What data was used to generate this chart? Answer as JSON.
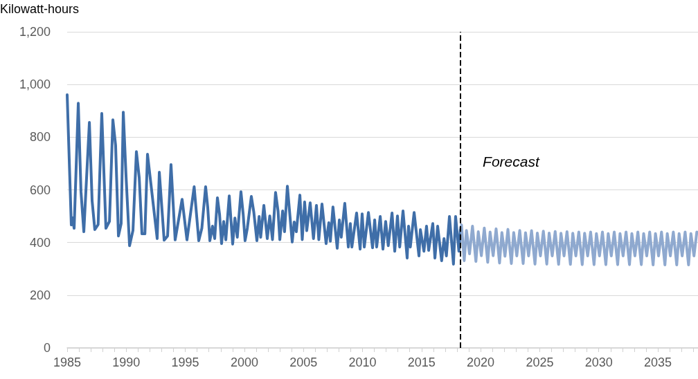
{
  "chart_data": {
    "type": "line",
    "ylabel": "Kilowatt-hours",
    "marker": "none",
    "line_style": "solid",
    "grid": "y",
    "xlim": [
      1985,
      2038.4
    ],
    "xticks": [
      {
        "value": 1985,
        "label": "1985"
      },
      {
        "value": 1986,
        "label": null
      },
      {
        "value": 1987,
        "label": null
      },
      {
        "value": 1988,
        "label": null
      },
      {
        "value": 1989,
        "label": null
      },
      {
        "value": 1990,
        "label": "1990"
      },
      {
        "value": 1991,
        "label": null
      },
      {
        "value": 1992,
        "label": null
      },
      {
        "value": 1993,
        "label": null
      },
      {
        "value": 1994,
        "label": null
      },
      {
        "value": 1995,
        "label": "1995"
      },
      {
        "value": 1996,
        "label": null
      },
      {
        "value": 1997,
        "label": null
      },
      {
        "value": 1998,
        "label": null
      },
      {
        "value": 1999,
        "label": null
      },
      {
        "value": 2000,
        "label": "2000"
      },
      {
        "value": 2001,
        "label": null
      },
      {
        "value": 2002,
        "label": null
      },
      {
        "value": 2003,
        "label": null
      },
      {
        "value": 2004,
        "label": null
      },
      {
        "value": 2005,
        "label": "2005"
      },
      {
        "value": 2006,
        "label": null
      },
      {
        "value": 2007,
        "label": null
      },
      {
        "value": 2008,
        "label": null
      },
      {
        "value": 2009,
        "label": null
      },
      {
        "value": 2010,
        "label": "2010"
      },
      {
        "value": 2011,
        "label": null
      },
      {
        "value": 2012,
        "label": null
      },
      {
        "value": 2013,
        "label": null
      },
      {
        "value": 2014,
        "label": null
      },
      {
        "value": 2015,
        "label": "2015"
      },
      {
        "value": 2016,
        "label": null
      },
      {
        "value": 2017,
        "label": null
      },
      {
        "value": 2018,
        "label": null
      },
      {
        "value": 2019,
        "label": null
      },
      {
        "value": 2020,
        "label": "2020"
      },
      {
        "value": 2021,
        "label": null
      },
      {
        "value": 2022,
        "label": null
      },
      {
        "value": 2023,
        "label": null
      },
      {
        "value": 2024,
        "label": null
      },
      {
        "value": 2025,
        "label": "2025"
      },
      {
        "value": 2026,
        "label": null
      },
      {
        "value": 2027,
        "label": null
      },
      {
        "value": 2028,
        "label": null
      },
      {
        "value": 2029,
        "label": null
      },
      {
        "value": 2030,
        "label": "2030"
      },
      {
        "value": 2031,
        "label": null
      },
      {
        "value": 2032,
        "label": null
      },
      {
        "value": 2033,
        "label": null
      },
      {
        "value": 2034,
        "label": null
      },
      {
        "value": 2035,
        "label": "2035"
      },
      {
        "value": 2036,
        "label": null
      },
      {
        "value": 2037,
        "label": null
      },
      {
        "value": 2038,
        "label": null
      }
    ],
    "ylim": [
      0,
      1200
    ],
    "yticks": [
      0,
      200,
      400,
      600,
      800,
      {
        "value": 1000,
        "label": "1,000"
      },
      {
        "value": 1200,
        "label": "1,200"
      }
    ],
    "ref_lines": [
      {
        "axis": "x",
        "value": 2018.3,
        "label": "Forecast",
        "color": "#000000",
        "line_style": "dashed"
      }
    ],
    "series": [
      {
        "color": "#3f6ea8",
        "x": [
          1985.0,
          1985.35,
          1985.45,
          1985.59,
          1985.94,
          1986.17,
          1986.41,
          1986.88,
          1987.11,
          1987.34,
          1987.62,
          1987.93,
          1988.28,
          1988.58,
          1988.87,
          1989.1,
          1989.34,
          1989.57,
          1989.75,
          1989.98,
          1990.28,
          1990.57,
          1990.86,
          1991.1,
          1991.33,
          1991.58,
          1991.8,
          1992.62,
          1992.8,
          1993.21,
          1993.5,
          1993.79,
          1994.14,
          1994.73,
          1995.14,
          1995.75,
          1996.14,
          1996.4,
          1996.72,
          1996.9,
          1997.08,
          1997.3,
          1997.49,
          1997.72,
          1997.9,
          1998.07,
          1998.25,
          1998.43,
          1998.72,
          1999.01,
          1999.2,
          1999.4,
          1999.71,
          1999.9,
          2000.06,
          2000.25,
          2000.59,
          2000.8,
          2001.06,
          2001.25,
          2001.38,
          2001.65,
          2001.94,
          2002.15,
          2002.38,
          2002.64,
          2002.85,
          2003.0,
          2003.24,
          2003.4,
          2003.64,
          2004.05,
          2004.22,
          2004.4,
          2004.7,
          2004.9,
          2005.1,
          2005.28,
          2005.57,
          2005.85,
          2006.1,
          2006.3,
          2006.57,
          2006.92,
          2007.15,
          2007.28,
          2007.5,
          2007.86,
          2008.04,
          2008.2,
          2008.5,
          2008.8,
          2008.97,
          2009.1,
          2009.5,
          2009.8,
          2009.97,
          2010.15,
          2010.5,
          2010.85,
          2011.03,
          2011.2,
          2011.5,
          2011.73,
          2011.96,
          2012.18,
          2012.5,
          2012.73,
          2012.96,
          2013.15,
          2013.43,
          2013.78,
          2013.9,
          2014.05,
          2014.37,
          2014.78,
          2014.9,
          2015.2,
          2015.42,
          2015.6,
          2015.95,
          2016.13,
          2016.36,
          2016.7,
          2016.9,
          2017.1,
          2017.36,
          2017.7,
          2017.88,
          2018.16,
          2018.3
        ],
        "values": [
          961,
          467,
          494,
          454,
          929,
          593,
          441,
          856,
          559,
          449,
          468,
          890,
          454,
          480,
          866,
          769,
          425,
          472,
          895,
          656,
          388,
          446,
          745,
          646,
          433,
          433,
          735,
          415,
          667,
          409,
          425,
          696,
          410,
          564,
          410,
          612,
          407,
          454,
          612,
          533,
          407,
          462,
          415,
          570,
          507,
          396,
          480,
          410,
          577,
          394,
          493,
          420,
          593,
          507,
          407,
          454,
          575,
          515,
          407,
          499,
          420,
          541,
          415,
          501,
          411,
          590,
          520,
          411,
          520,
          441,
          614,
          402,
          478,
          441,
          580,
          411,
          554,
          445,
          551,
          415,
          541,
          411,
          546,
          396,
          475,
          405,
          535,
          378,
          486,
          420,
          549,
          383,
          472,
          383,
          512,
          375,
          509,
          383,
          514,
          380,
          486,
          383,
          499,
          375,
          480,
          388,
          512,
          367,
          501,
          383,
          520,
          341,
          462,
          383,
          514,
          349,
          449,
          367,
          462,
          370,
          472,
          341,
          462,
          331,
          415,
          349,
          499,
          318,
          499,
          367,
          454
        ]
      },
      {
        "color": "#8fa9cf",
        "x": [
          2018.3,
          2018.38,
          2018.61,
          2018.8,
          2019.06,
          2019.31,
          2019.6,
          2019.8,
          2020.06,
          2020.31,
          2020.6,
          2020.8,
          2021.06,
          2021.31,
          2021.6,
          2021.8,
          2022.06,
          2022.31,
          2022.6,
          2022.8,
          2023.06,
          2023.31,
          2023.6,
          2023.8,
          2024.06,
          2024.31,
          2024.6,
          2024.8,
          2025.06,
          2025.31,
          2025.6,
          2025.8,
          2026.06,
          2026.31,
          2026.6,
          2026.8,
          2027.06,
          2027.31,
          2027.6,
          2027.8,
          2028.06,
          2028.31,
          2028.6,
          2028.8,
          2029.06,
          2029.31,
          2029.6,
          2029.8,
          2030.06,
          2030.31,
          2030.6,
          2030.8,
          2031.06,
          2031.31,
          2031.6,
          2031.8,
          2032.06,
          2032.31,
          2032.6,
          2032.8,
          2033.06,
          2033.31,
          2033.6,
          2033.8,
          2034.06,
          2034.31,
          2034.6,
          2034.8,
          2035.06,
          2035.31,
          2035.6,
          2035.8,
          2036.06,
          2036.31,
          2036.6,
          2036.8,
          2037.06,
          2037.31,
          2037.6,
          2037.8,
          2038.06,
          2038.3
        ],
        "values": [
          454,
          467,
          331,
          446,
          357,
          462,
          328,
          441,
          350,
          455,
          325,
          440,
          350,
          452,
          322,
          438,
          348,
          450,
          320,
          438,
          349,
          446,
          320,
          437,
          349,
          445,
          318,
          436,
          349,
          443,
          318,
          436,
          349,
          442,
          317,
          435,
          349,
          441,
          317,
          435,
          349,
          440,
          316,
          435,
          349,
          440,
          316,
          434,
          349,
          440,
          316,
          434,
          349,
          440,
          316,
          434,
          349,
          440,
          316,
          434,
          349,
          440,
          316,
          434,
          349,
          440,
          315,
          434,
          349,
          440,
          315,
          434,
          349,
          440,
          315,
          434,
          349,
          440,
          315,
          434,
          349,
          440
        ]
      }
    ]
  }
}
